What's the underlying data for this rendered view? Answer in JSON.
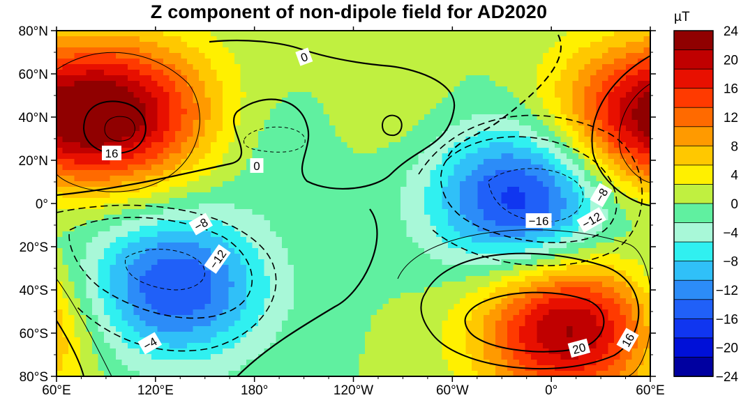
{
  "title": "Z component of non-dipole field for AD2020",
  "unit": "µT",
  "x_ticks": [
    "60°E",
    "120°E",
    "180°",
    "120°W",
    "60°W",
    "0°",
    "60°E"
  ],
  "y_ticks": [
    "80°N",
    "60°N",
    "40°N",
    "20°N",
    "0°",
    "20°S",
    "40°S",
    "60°S",
    "80°S"
  ],
  "colorbar": {
    "labels": [
      "24",
      "20",
      "16",
      "12",
      "8",
      "4",
      "0",
      "−4",
      "−8",
      "−12",
      "−16",
      "−20",
      "−24"
    ],
    "colors": [
      "#0000a0",
      "#0010d8",
      "#1036f0",
      "#2060f8",
      "#2c8cf8",
      "#30c0f8",
      "#30f0f0",
      "#a8f8d8",
      "#60f0a0",
      "#c0f040",
      "#fff000",
      "#ffc800",
      "#ff9a00",
      "#ff6a00",
      "#ff3a00",
      "#e81000",
      "#c00000",
      "#900000"
    ]
  },
  "contour_labels": [
    "0",
    "0",
    "16",
    "−8",
    "−12",
    "−4",
    "−16",
    "−12",
    "−8",
    "20",
    "16"
  ],
  "chart_data": {
    "type": "heatmap",
    "title": "Z component of non-dipole field for AD2020",
    "unit": "µT",
    "x_range_lon": [
      "60°E",
      "60°E"
    ],
    "y_range_lat": [
      -80,
      80
    ],
    "color_scale": {
      "min": -24,
      "max": 24,
      "step": 2
    },
    "extrema": [
      {
        "lon": 105,
        "lat": 42,
        "value": 18,
        "sign": "positive"
      },
      {
        "lon": 10,
        "lat": -58,
        "value": 22,
        "sign": "positive"
      },
      {
        "lon": 50,
        "lat": 40,
        "value": 16,
        "sign": "positive"
      },
      {
        "lon": -18,
        "lat": 2,
        "value": -18,
        "sign": "negative"
      },
      {
        "lon": 132,
        "lat": -38,
        "value": -16,
        "sign": "negative"
      },
      {
        "lon": -95,
        "lat": 45,
        "value": 2,
        "sign": "positive"
      },
      {
        "lon": -170,
        "lat": 28,
        "value": -2,
        "sign": "negative"
      }
    ]
  }
}
